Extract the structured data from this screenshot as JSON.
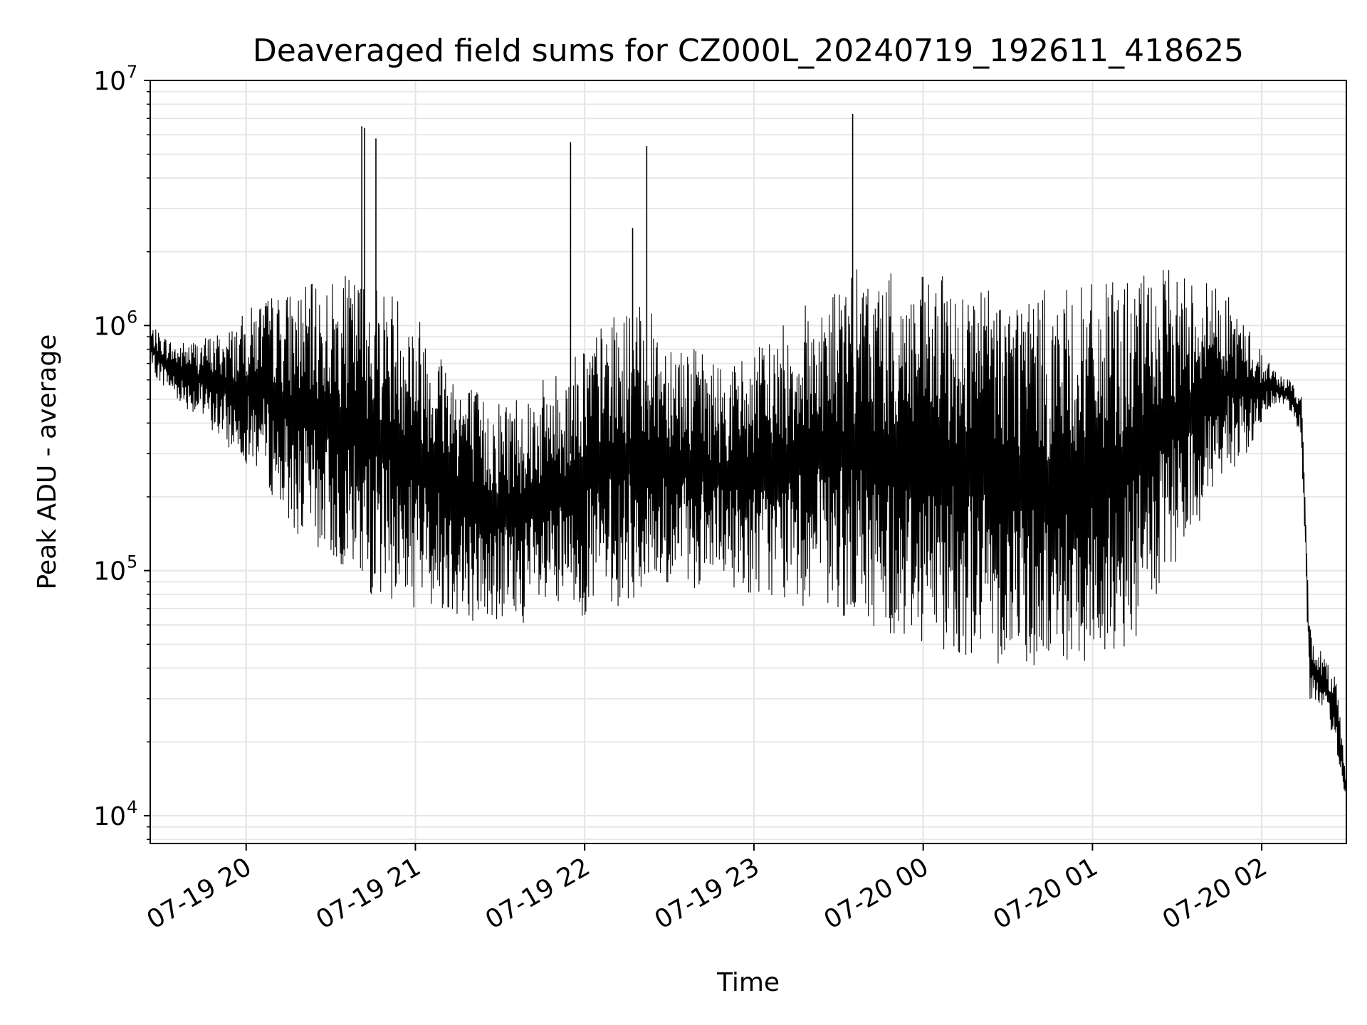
{
  "chart_data": {
    "type": "line",
    "title": "Deaveraged field sums for CZ000L_20240719_192611_418625",
    "xlabel": "Time",
    "ylabel": "Peak ADU - average",
    "yscale": "log",
    "ylim": [
      7700,
      10000000
    ],
    "xlim": [
      "2024-07-19 19:26",
      "2024-07-20 02:30"
    ],
    "grid": true,
    "line_color": "#000000",
    "x_ticks": [
      "07-19 20",
      "07-19 21",
      "07-19 22",
      "07-19 23",
      "07-20 00",
      "07-20 01",
      "07-20 02"
    ],
    "x_tick_values": [
      "2024-07-19 20:00",
      "2024-07-19 21:00",
      "2024-07-19 22:00",
      "2024-07-19 23:00",
      "2024-07-20 00:00",
      "2024-07-20 01:00",
      "2024-07-20 02:00"
    ],
    "y_ticks": [
      {
        "base": "10",
        "exp": "4",
        "value": 10000
      },
      {
        "base": "10",
        "exp": "5",
        "value": 100000
      },
      {
        "base": "10",
        "exp": "6",
        "value": 1000000
      },
      {
        "base": "10",
        "exp": "7",
        "value": 10000000
      }
    ],
    "series": [
      {
        "x": [
          "2024-07-19 19:26",
          "2024-07-19 19:35",
          "2024-07-19 19:45",
          "2024-07-19 19:55",
          "2024-07-19 20:05",
          "2024-07-19 20:15",
          "2024-07-19 20:25",
          "2024-07-19 20:35",
          "2024-07-19 20:43",
          "2024-07-19 20:50",
          "2024-07-19 20:57",
          "2024-07-19 21:05",
          "2024-07-19 21:15",
          "2024-07-19 21:25",
          "2024-07-19 21:35",
          "2024-07-19 21:45",
          "2024-07-19 21:54",
          "2024-07-19 22:00",
          "2024-07-19 22:10",
          "2024-07-19 22:20",
          "2024-07-19 22:30",
          "2024-07-19 22:40",
          "2024-07-19 22:50",
          "2024-07-19 23:00",
          "2024-07-19 23:10",
          "2024-07-19 23:20",
          "2024-07-19 23:30",
          "2024-07-19 23:36",
          "2024-07-19 23:45",
          "2024-07-19 23:55",
          "2024-07-20 00:05",
          "2024-07-20 00:15",
          "2024-07-20 00:25",
          "2024-07-20 00:35",
          "2024-07-20 00:45",
          "2024-07-20 00:55",
          "2024-07-20 01:05",
          "2024-07-20 01:15",
          "2024-07-20 01:25",
          "2024-07-20 01:35",
          "2024-07-20 01:45",
          "2024-07-20 01:55",
          "2024-07-20 02:05",
          "2024-07-20 02:10",
          "2024-07-20 02:14",
          "2024-07-20 02:17",
          "2024-07-20 02:22",
          "2024-07-20 02:26",
          "2024-07-20 02:30"
        ],
        "low": [
          650000,
          500000,
          400000,
          300000,
          250000,
          150000,
          120000,
          100000,
          80000,
          75000,
          70000,
          70000,
          65000,
          60000,
          60000,
          62000,
          63000,
          65000,
          70000,
          75000,
          80000,
          85000,
          85000,
          80000,
          75000,
          70000,
          65000,
          60000,
          55000,
          52000,
          48000,
          45000,
          42000,
          40000,
          38000,
          40000,
          42000,
          50000,
          80000,
          130000,
          220000,
          300000,
          480000,
          450000,
          350000,
          30000,
          25000,
          20000,
          11000
        ],
        "high": [
          1000000,
          850000,
          900000,
          1000000,
          1300000,
          1400000,
          1500000,
          1600000,
          1600000,
          1500000,
          1300000,
          1000000,
          700000,
          500000,
          550000,
          600000,
          700000,
          900000,
          1100000,
          1200000,
          1000000,
          800000,
          700000,
          800000,
          1000000,
          1300000,
          1500000,
          1700000,
          1650000,
          1600000,
          1600000,
          1550000,
          1500000,
          1450000,
          1400000,
          1450000,
          1500000,
          1600000,
          1700000,
          1650000,
          1500000,
          1000000,
          650000,
          600000,
          550000,
          60000,
          45000,
          40000,
          15000
        ]
      }
    ],
    "spikes": [
      {
        "x": "2024-07-19 20:41",
        "y": 6500000
      },
      {
        "x": "2024-07-19 20:42",
        "y": 6400000
      },
      {
        "x": "2024-07-19 20:46",
        "y": 5800000
      },
      {
        "x": "2024-07-19 21:55",
        "y": 5600000
      },
      {
        "x": "2024-07-19 22:17",
        "y": 2500000
      },
      {
        "x": "2024-07-19 22:22",
        "y": 5400000
      },
      {
        "x": "2024-07-19 23:35",
        "y": 7300000
      }
    ]
  }
}
